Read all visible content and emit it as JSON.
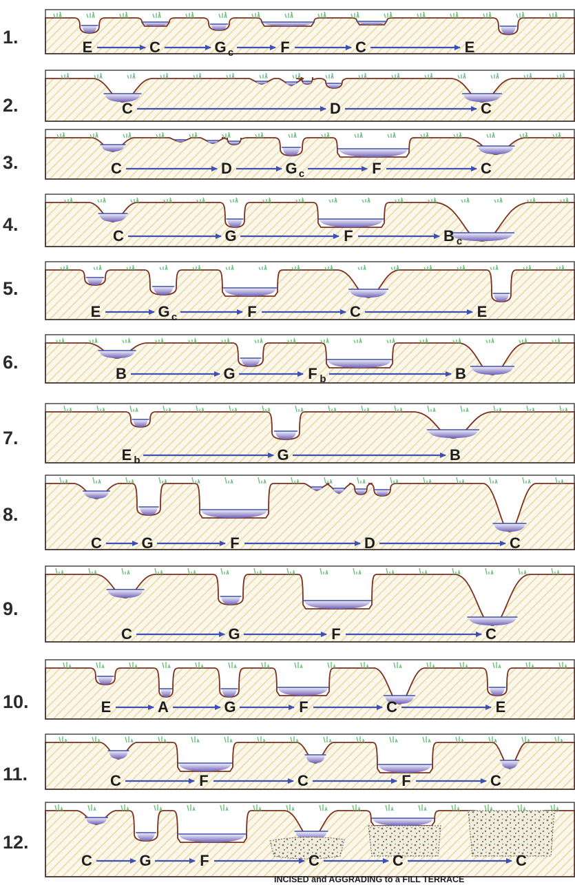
{
  "rows": [
    {
      "number": "1.",
      "sequence": [
        {
          "t": "E"
        },
        {
          "t": "C"
        },
        {
          "t": "G",
          "s": "c"
        },
        {
          "t": "F"
        },
        {
          "t": "C"
        },
        {
          "t": "E"
        }
      ]
    },
    {
      "number": "2.",
      "sequence": [
        {
          "t": "C"
        },
        {
          "t": "D"
        },
        {
          "t": "C"
        }
      ]
    },
    {
      "number": "3.",
      "sequence": [
        {
          "t": "C"
        },
        {
          "t": "D"
        },
        {
          "t": "G",
          "s": "c"
        },
        {
          "t": "F"
        },
        {
          "t": "C"
        }
      ]
    },
    {
      "number": "4.",
      "sequence": [
        {
          "t": "C"
        },
        {
          "t": "G"
        },
        {
          "t": "F"
        },
        {
          "t": "B",
          "s": "c"
        }
      ]
    },
    {
      "number": "5.",
      "sequence": [
        {
          "t": "E"
        },
        {
          "t": "G",
          "s": "c"
        },
        {
          "t": "F"
        },
        {
          "t": "C"
        },
        {
          "t": "E"
        }
      ]
    },
    {
      "number": "6.",
      "sequence": [
        {
          "t": "B"
        },
        {
          "t": "G"
        },
        {
          "t": "F",
          "s": "b"
        },
        {
          "t": "B"
        }
      ]
    },
    {
      "number": "7.",
      "sequence": [
        {
          "t": "E",
          "s": "b"
        },
        {
          "t": "G"
        },
        {
          "t": "B"
        }
      ]
    },
    {
      "number": "8.",
      "sequence": [
        {
          "t": "C"
        },
        {
          "t": "G"
        },
        {
          "t": "F"
        },
        {
          "t": "D"
        },
        {
          "t": "C"
        }
      ]
    },
    {
      "number": "9.",
      "sequence": [
        {
          "t": "C"
        },
        {
          "t": "G"
        },
        {
          "t": "F"
        },
        {
          "t": "C"
        }
      ]
    },
    {
      "number": "10.",
      "sequence": [
        {
          "t": "E"
        },
        {
          "t": "A"
        },
        {
          "t": "G"
        },
        {
          "t": "F"
        },
        {
          "t": "C"
        },
        {
          "t": "E"
        }
      ]
    },
    {
      "number": "11.",
      "sequence": [
        {
          "t": "C"
        },
        {
          "t": "F"
        },
        {
          "t": "C"
        },
        {
          "t": "F"
        },
        {
          "t": "C"
        }
      ]
    },
    {
      "number": "12.",
      "sequence": [
        {
          "t": "C"
        },
        {
          "t": "G"
        },
        {
          "t": "F"
        },
        {
          "t": "C"
        },
        {
          "t": "C"
        },
        {
          "t": "C"
        }
      ]
    }
  ],
  "caption": "INCISED and  AGGRADING to a FILL TERRACE",
  "colors": {
    "bank_line": "#7a2e1e",
    "hatch": "#e8d9a8",
    "arrow": "#3f4fb0",
    "water_top": "#f2f0fb",
    "water_bottom": "#6f64b8",
    "grass_green": "#6cbf7a",
    "grass_yellow": "#e3c63a"
  }
}
